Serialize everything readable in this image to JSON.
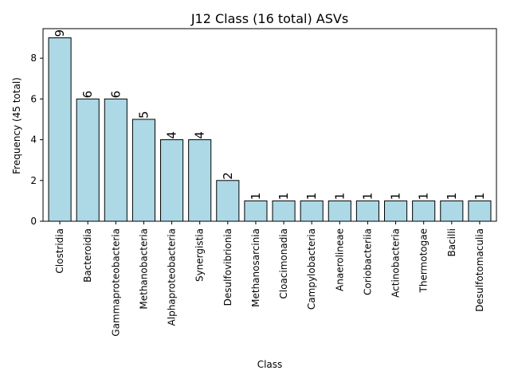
{
  "chart_data": {
    "type": "bar",
    "title": "J12 Class (16 total) ASVs",
    "xlabel": "Class",
    "ylabel": "Frequency (45 total)",
    "categories": [
      "Clostridia",
      "Bacteroidia",
      "Gammaproteobacteria",
      "Methanobacteria",
      "Alphaproteobacteria",
      "Synergistia",
      "Desulfovibrionia",
      "Methanosarcinia",
      "Cloacimonadia",
      "Campylobacteria",
      "Anaerolineae",
      "Coriobacteriia",
      "Actinobacteria",
      "Thermotogae",
      "Bacilli",
      "Desulfotomaculia"
    ],
    "values": [
      9,
      6,
      6,
      5,
      4,
      4,
      2,
      1,
      1,
      1,
      1,
      1,
      1,
      1,
      1,
      1
    ],
    "yticks": [
      0,
      2,
      4,
      6,
      8
    ],
    "ylim": [
      0,
      9.45
    ],
    "grid": false,
    "bar_color": "#add8e6",
    "edge_color": "#000000"
  }
}
